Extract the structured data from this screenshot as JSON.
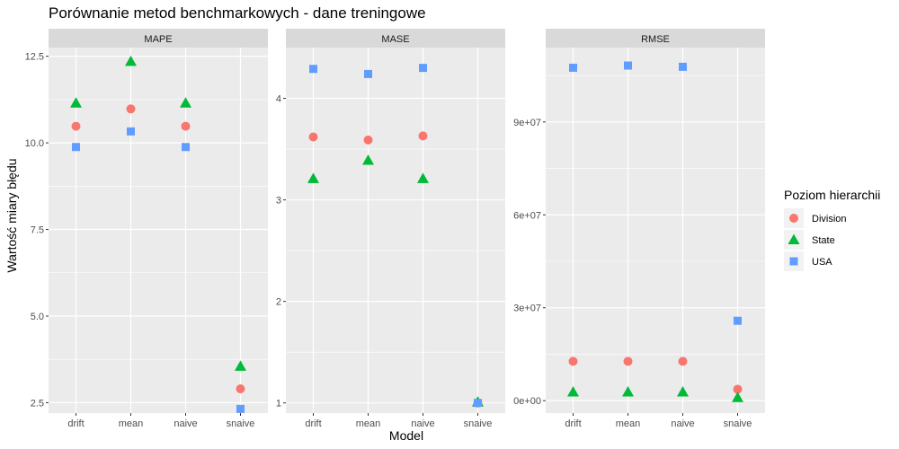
{
  "chart_data": {
    "type": "scatter",
    "title": "Porównanie metod benchmarkowych - dane treningowe",
    "xlabel": "Model",
    "ylabel": "Wartość miary błędu",
    "categories": [
      "drift",
      "mean",
      "naive",
      "snaive"
    ],
    "legend": {
      "title": "Poziom hierarchii",
      "position": "right",
      "entries": [
        {
          "name": "Division",
          "color": "#F8766D",
          "shape": "circle"
        },
        {
          "name": "State",
          "color": "#00BA38",
          "shape": "triangle"
        },
        {
          "name": "USA",
          "color": "#619CFF",
          "shape": "square"
        }
      ]
    },
    "grid": true,
    "facets": [
      {
        "name": "MAPE",
        "ylim": [
          2.2,
          12.75
        ],
        "yticks": [
          2.5,
          5.0,
          7.5,
          10.0,
          12.5
        ],
        "ytick_labels": [
          "2.5",
          "5.0",
          "7.5",
          "10.0",
          "12.5"
        ],
        "series": [
          {
            "name": "Division",
            "values": [
              10.48,
              10.98,
              10.48,
              2.9
            ]
          },
          {
            "name": "State",
            "values": [
              11.15,
              12.35,
              11.15,
              3.55
            ]
          },
          {
            "name": "USA",
            "values": [
              9.88,
              10.33,
              9.88,
              2.32
            ]
          }
        ]
      },
      {
        "name": "MASE",
        "ylim": [
          0.9,
          4.5
        ],
        "yticks": [
          1,
          2,
          3,
          4
        ],
        "ytick_labels": [
          "1",
          "2",
          "3",
          "4"
        ],
        "series": [
          {
            "name": "Division",
            "values": [
              3.62,
              3.59,
              3.63,
              1.0
            ]
          },
          {
            "name": "State",
            "values": [
              3.21,
              3.39,
              3.21,
              1.01
            ]
          },
          {
            "name": "USA",
            "values": [
              4.29,
              4.24,
              4.3,
              1.0
            ]
          }
        ]
      },
      {
        "name": "RMSE",
        "ylim": [
          -4000000,
          114000000
        ],
        "yticks": [
          0,
          30000000,
          60000000,
          90000000
        ],
        "ytick_labels": [
          "0e+00",
          "3e+07",
          "6e+07",
          "9e+07"
        ],
        "series": [
          {
            "name": "Division",
            "values": [
              12700000,
              12700000,
              12700000,
              3700000
            ]
          },
          {
            "name": "State",
            "values": [
              2800000,
              2800000,
              2800000,
              1000000
            ]
          },
          {
            "name": "USA",
            "values": [
              107500000,
              108200000,
              107800000,
              25800000
            ]
          }
        ]
      }
    ]
  }
}
